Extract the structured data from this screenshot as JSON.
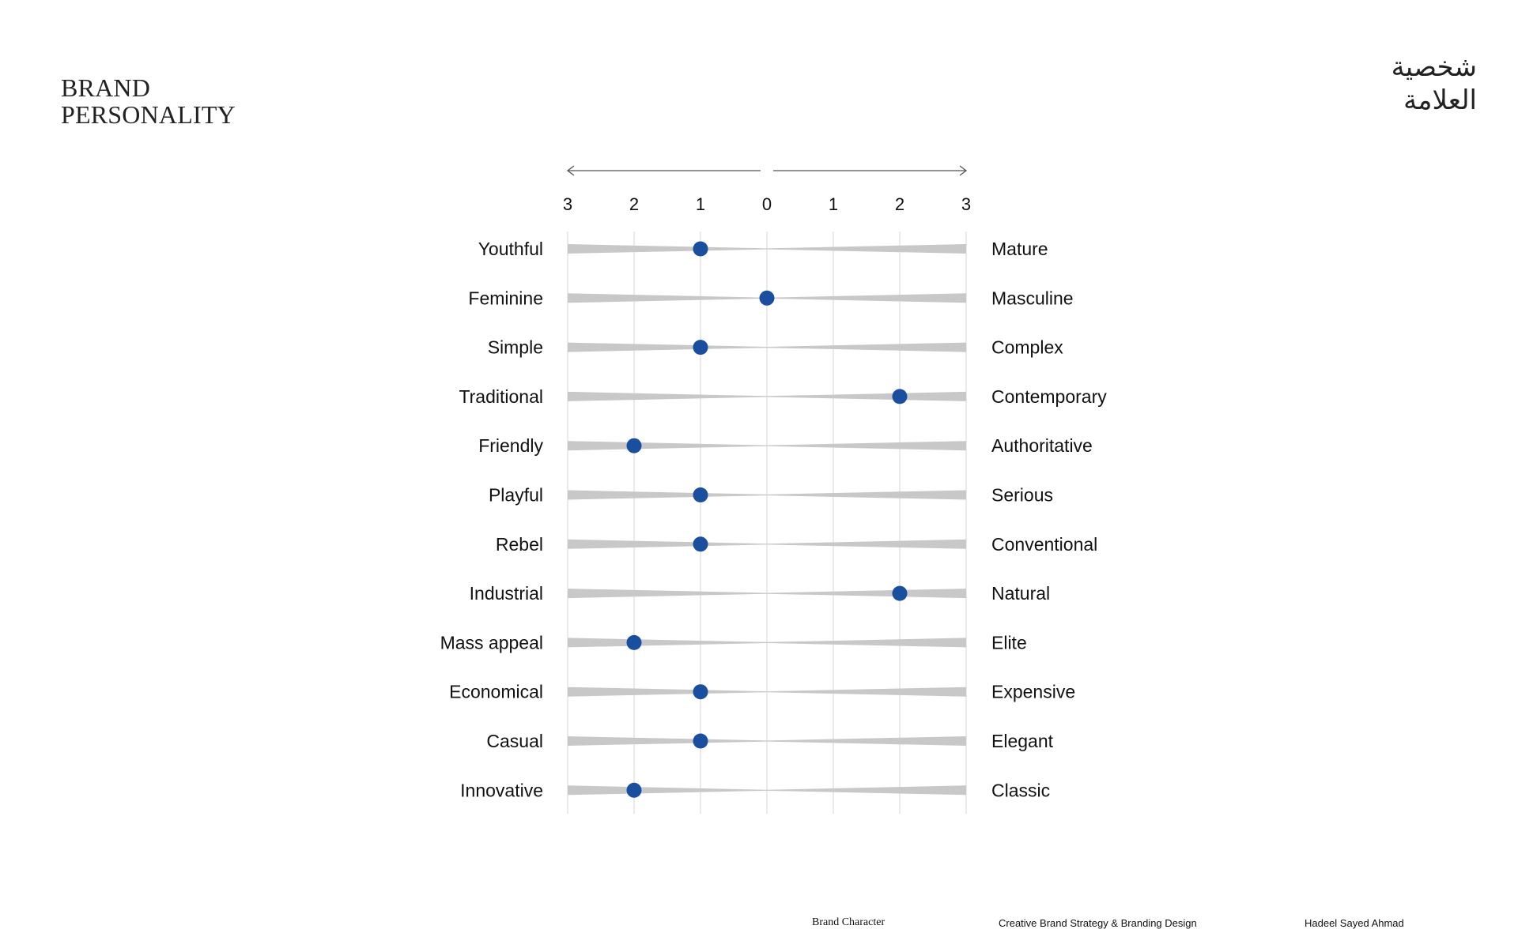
{
  "page": {
    "title_en_line1": "BRAND",
    "title_en_line2": "PERSONALITY",
    "title_ar_line1": "شخصية",
    "title_ar_line2": "العلامة"
  },
  "footer": {
    "section": "Brand Character",
    "project": "Creative Brand Strategy & Branding Design",
    "author": "Hadeel Sayed Ahmad"
  },
  "chart_data": {
    "type": "scatter",
    "subtype": "bipolar-scale",
    "scale_ticks": [
      "3",
      "2",
      "1",
      "0",
      "1",
      "2",
      "3"
    ],
    "scale_range": [
      -3,
      3
    ],
    "axis_arrows": "both-directions",
    "grid": true,
    "point_color": "#1a4fa0",
    "wedge_color": "#c8c8c8",
    "rows": [
      {
        "left": "Youthful",
        "right": "Mature",
        "value": -1
      },
      {
        "left": "Feminine",
        "right": "Masculine",
        "value": 0
      },
      {
        "left": "Simple",
        "right": "Complex",
        "value": -1
      },
      {
        "left": "Traditional",
        "right": "Contemporary",
        "value": 2
      },
      {
        "left": "Friendly",
        "right": "Authoritative",
        "value": -2
      },
      {
        "left": "Playful",
        "right": "Serious",
        "value": -1
      },
      {
        "left": "Rebel",
        "right": "Conventional",
        "value": -1
      },
      {
        "left": "Industrial",
        "right": "Natural",
        "value": 2
      },
      {
        "left": "Mass appeal",
        "right": "Elite",
        "value": -2
      },
      {
        "left": "Economical",
        "right": "Expensive",
        "value": -1
      },
      {
        "left": "Casual",
        "right": "Elegant",
        "value": -1
      },
      {
        "left": "Innovative",
        "right": "Classic",
        "value": -2
      }
    ]
  }
}
